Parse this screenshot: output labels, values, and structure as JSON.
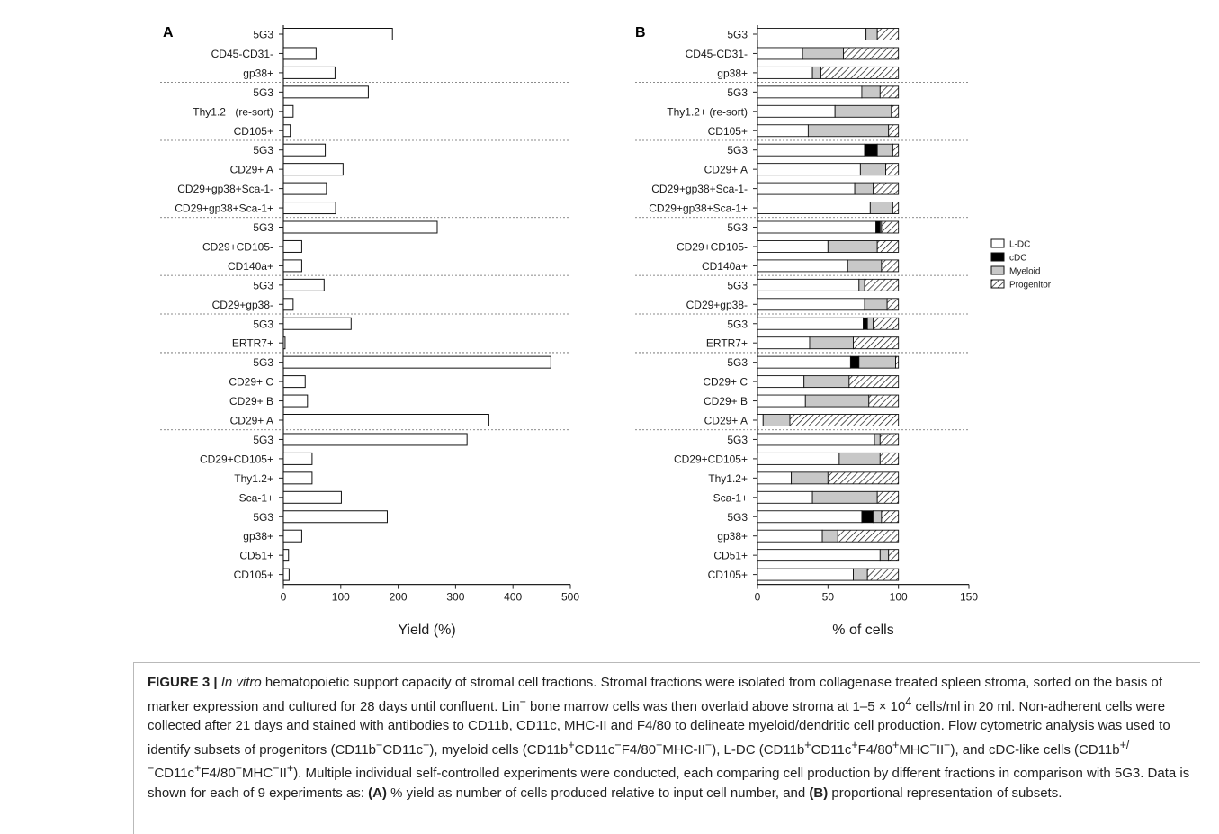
{
  "chart_data": [
    {
      "type": "bar",
      "panel": "A",
      "xlabel": "Yield (%)",
      "xlim": [
        0,
        500
      ],
      "xticks": [
        0,
        100,
        200,
        300,
        400,
        500
      ],
      "categories": [
        "5G3",
        "CD45-CD31-",
        "gp38+",
        "5G3",
        "Thy1.2+ (re-sort)",
        "CD105+",
        "5G3",
        "CD29+ A",
        "CD29+gp38+Sca-1-",
        "CD29+gp38+Sca-1+",
        "5G3",
        "CD29+CD105-",
        "CD140a+",
        "5G3",
        "CD29+gp38-",
        "5G3",
        "ERTR7+",
        "5G3",
        "CD29+ C",
        "CD29+ B",
        "CD29+ A",
        "5G3",
        "CD29+CD105+",
        "Thy1.2+",
        "Sca-1+",
        "5G3",
        "gp38+",
        "CD51+",
        "CD105+"
      ],
      "values": [
        190,
        57,
        90,
        148,
        17,
        12,
        73,
        104,
        75,
        91,
        268,
        32,
        32,
        71,
        17,
        118,
        3,
        466,
        38,
        42,
        358,
        320,
        50,
        50,
        101,
        181,
        32,
        9,
        10
      ],
      "groups_end": [
        2,
        5,
        9,
        12,
        14,
        16,
        20,
        24
      ]
    },
    {
      "type": "bar",
      "stacked": true,
      "panel": "B",
      "xlabel": "% of cells",
      "xlim": [
        0,
        150
      ],
      "xticks": [
        0,
        50,
        100,
        150
      ],
      "categories": [
        "5G3",
        "CD45-CD31-",
        "gp38+",
        "5G3",
        "Thy1.2+ (re-sort)",
        "CD105+",
        "5G3",
        "CD29+ A",
        "CD29+gp38+Sca-1-",
        "CD29+gp38+Sca-1+",
        "5G3",
        "CD29+CD105-",
        "CD140a+",
        "5G3",
        "CD29+gp38-",
        "5G3",
        "ERTR7+",
        "5G3",
        "CD29+ C",
        "CD29+ B",
        "CD29+ A",
        "5G3",
        "CD29+CD105+",
        "Thy1.2+",
        "Sca-1+",
        "5G3",
        "gp38+",
        "CD51+",
        "CD105+"
      ],
      "series": [
        {
          "name": "L-DC",
          "values": [
            77,
            32,
            39,
            74,
            55,
            36,
            76,
            73,
            69,
            80,
            84,
            50,
            64,
            72,
            76,
            75,
            37,
            66,
            33,
            34,
            4,
            83,
            58,
            24,
            39,
            74,
            46,
            87,
            68
          ]
        },
        {
          "name": "cDC",
          "values": [
            0,
            0,
            0,
            0,
            0,
            0,
            9,
            0,
            0,
            0,
            3,
            0,
            0,
            0,
            0,
            3,
            0,
            6,
            0,
            0,
            0,
            0,
            0,
            0,
            0,
            8,
            0,
            0,
            0
          ]
        },
        {
          "name": "Myeloid",
          "values": [
            8,
            29,
            6,
            13,
            40,
            57,
            11,
            18,
            13,
            16,
            1,
            35,
            24,
            4,
            16,
            4,
            31,
            26,
            32,
            45,
            19,
            4,
            29,
            26,
            46,
            6,
            11,
            6,
            10
          ]
        },
        {
          "name": "Progenitor",
          "values": [
            15,
            39,
            55,
            13,
            5,
            7,
            4,
            9,
            18,
            4,
            12,
            15,
            12,
            24,
            8,
            18,
            32,
            2,
            35,
            21,
            77,
            13,
            13,
            50,
            15,
            12,
            43,
            7,
            22
          ]
        }
      ],
      "groups_end": [
        2,
        5,
        9,
        12,
        14,
        16,
        20,
        24
      ]
    }
  ],
  "panels": {
    "a_label": "A",
    "b_label": "B"
  },
  "legend": {
    "position": "right",
    "items": [
      {
        "label": "L-DC",
        "fill": "#ffffff"
      },
      {
        "label": "cDC",
        "fill": "#000000"
      },
      {
        "label": "Myeloid",
        "fill": "#c8c8c8"
      },
      {
        "label": "Progenitor",
        "fill": "hatch"
      }
    ]
  },
  "colors": {
    "myeloid": "#c8c8c8",
    "cdc": "#000000",
    "ldc": "#ffffff",
    "axis": "#222222",
    "divider": "#666666"
  },
  "caption": {
    "label": "FIGURE 3 |",
    "italic": "In vitro",
    "p1": " hematopoietic support capacity of stromal cell fractions. Stromal fractions were isolated from collagenase treated spleen stroma, sorted on the basis of marker expression and cultured for 28 days until confluent. Lin",
    "sup1": "−",
    "p2": " bone marrow cells was then overlaid above stroma at 1–5 × 10",
    "sup2": "4",
    "p3": " cells/ml in 20 ml. Non-adherent cells were collected after 21 days and stained with antibodies to CD11b, CD11c, MHC-II and F4/80 to delineate myeloid/dendritic cell production. Flow cytometric analysis was used to identify subsets of progenitors (CD11b",
    "sup3": "−",
    "p4": "CD11c",
    "sup4": "−",
    "p5": "), myeloid cells (CD11b",
    "sup5": "+",
    "p6": "CD11c",
    "sup6": "−",
    "p7": "F4/80",
    "sup7": "−",
    "p8": "MHC-II",
    "sup8": "−",
    "p9": "), L-DC (CD11b",
    "sup9": "+",
    "p10": "CD11c",
    "sup10": "+",
    "p11": "F4/80",
    "sup11": "+",
    "p12": "MHC",
    "sup12": "−",
    "p13": "II",
    "sup13": "−",
    "p14": "), and cDC-like cells (CD11b",
    "sup14": "+/−",
    "p15": "CD11c",
    "sup15": "+",
    "p16": "F4/80",
    "sup16": "−",
    "p17": "MHC",
    "sup17": "−",
    "p18": "II",
    "sup18": "+",
    "p19": "). Multiple individual self-controlled experiments were conducted, each comparing cell production by different fractions in comparison with 5G3. Data is shown for each of 9 experiments as: ",
    "bold_a": "(A)",
    "p20": " % yield as number of cells produced relative to input cell number, and ",
    "bold_b": "(B)",
    "p21": " proportional representation of subsets."
  }
}
